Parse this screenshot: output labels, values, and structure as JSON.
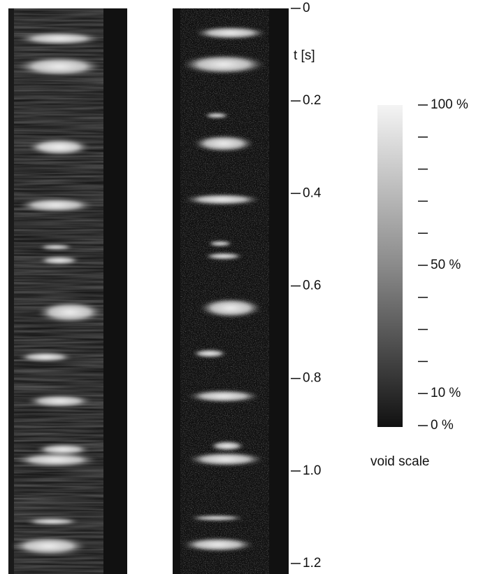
{
  "time_axis": {
    "label": "t [s]",
    "ylim": [
      0,
      1.2
    ],
    "ticks": [
      0,
      0.2,
      0.4,
      0.6,
      0.8,
      {
        "value": 1,
        "label": "1.0"
      },
      1.2
    ]
  },
  "colorbar": {
    "label": "void scale",
    "lim": [
      0,
      100
    ],
    "ticks": [
      {
        "value": 100,
        "label": "100 %"
      },
      {
        "value": 50,
        "label": "50 %"
      },
      {
        "value": 10,
        "label": "10 %"
      },
      {
        "value": 0,
        "label": "0 %"
      }
    ],
    "minor_ticks": [
      20,
      30,
      40,
      60,
      70,
      80,
      90
    ]
  }
}
